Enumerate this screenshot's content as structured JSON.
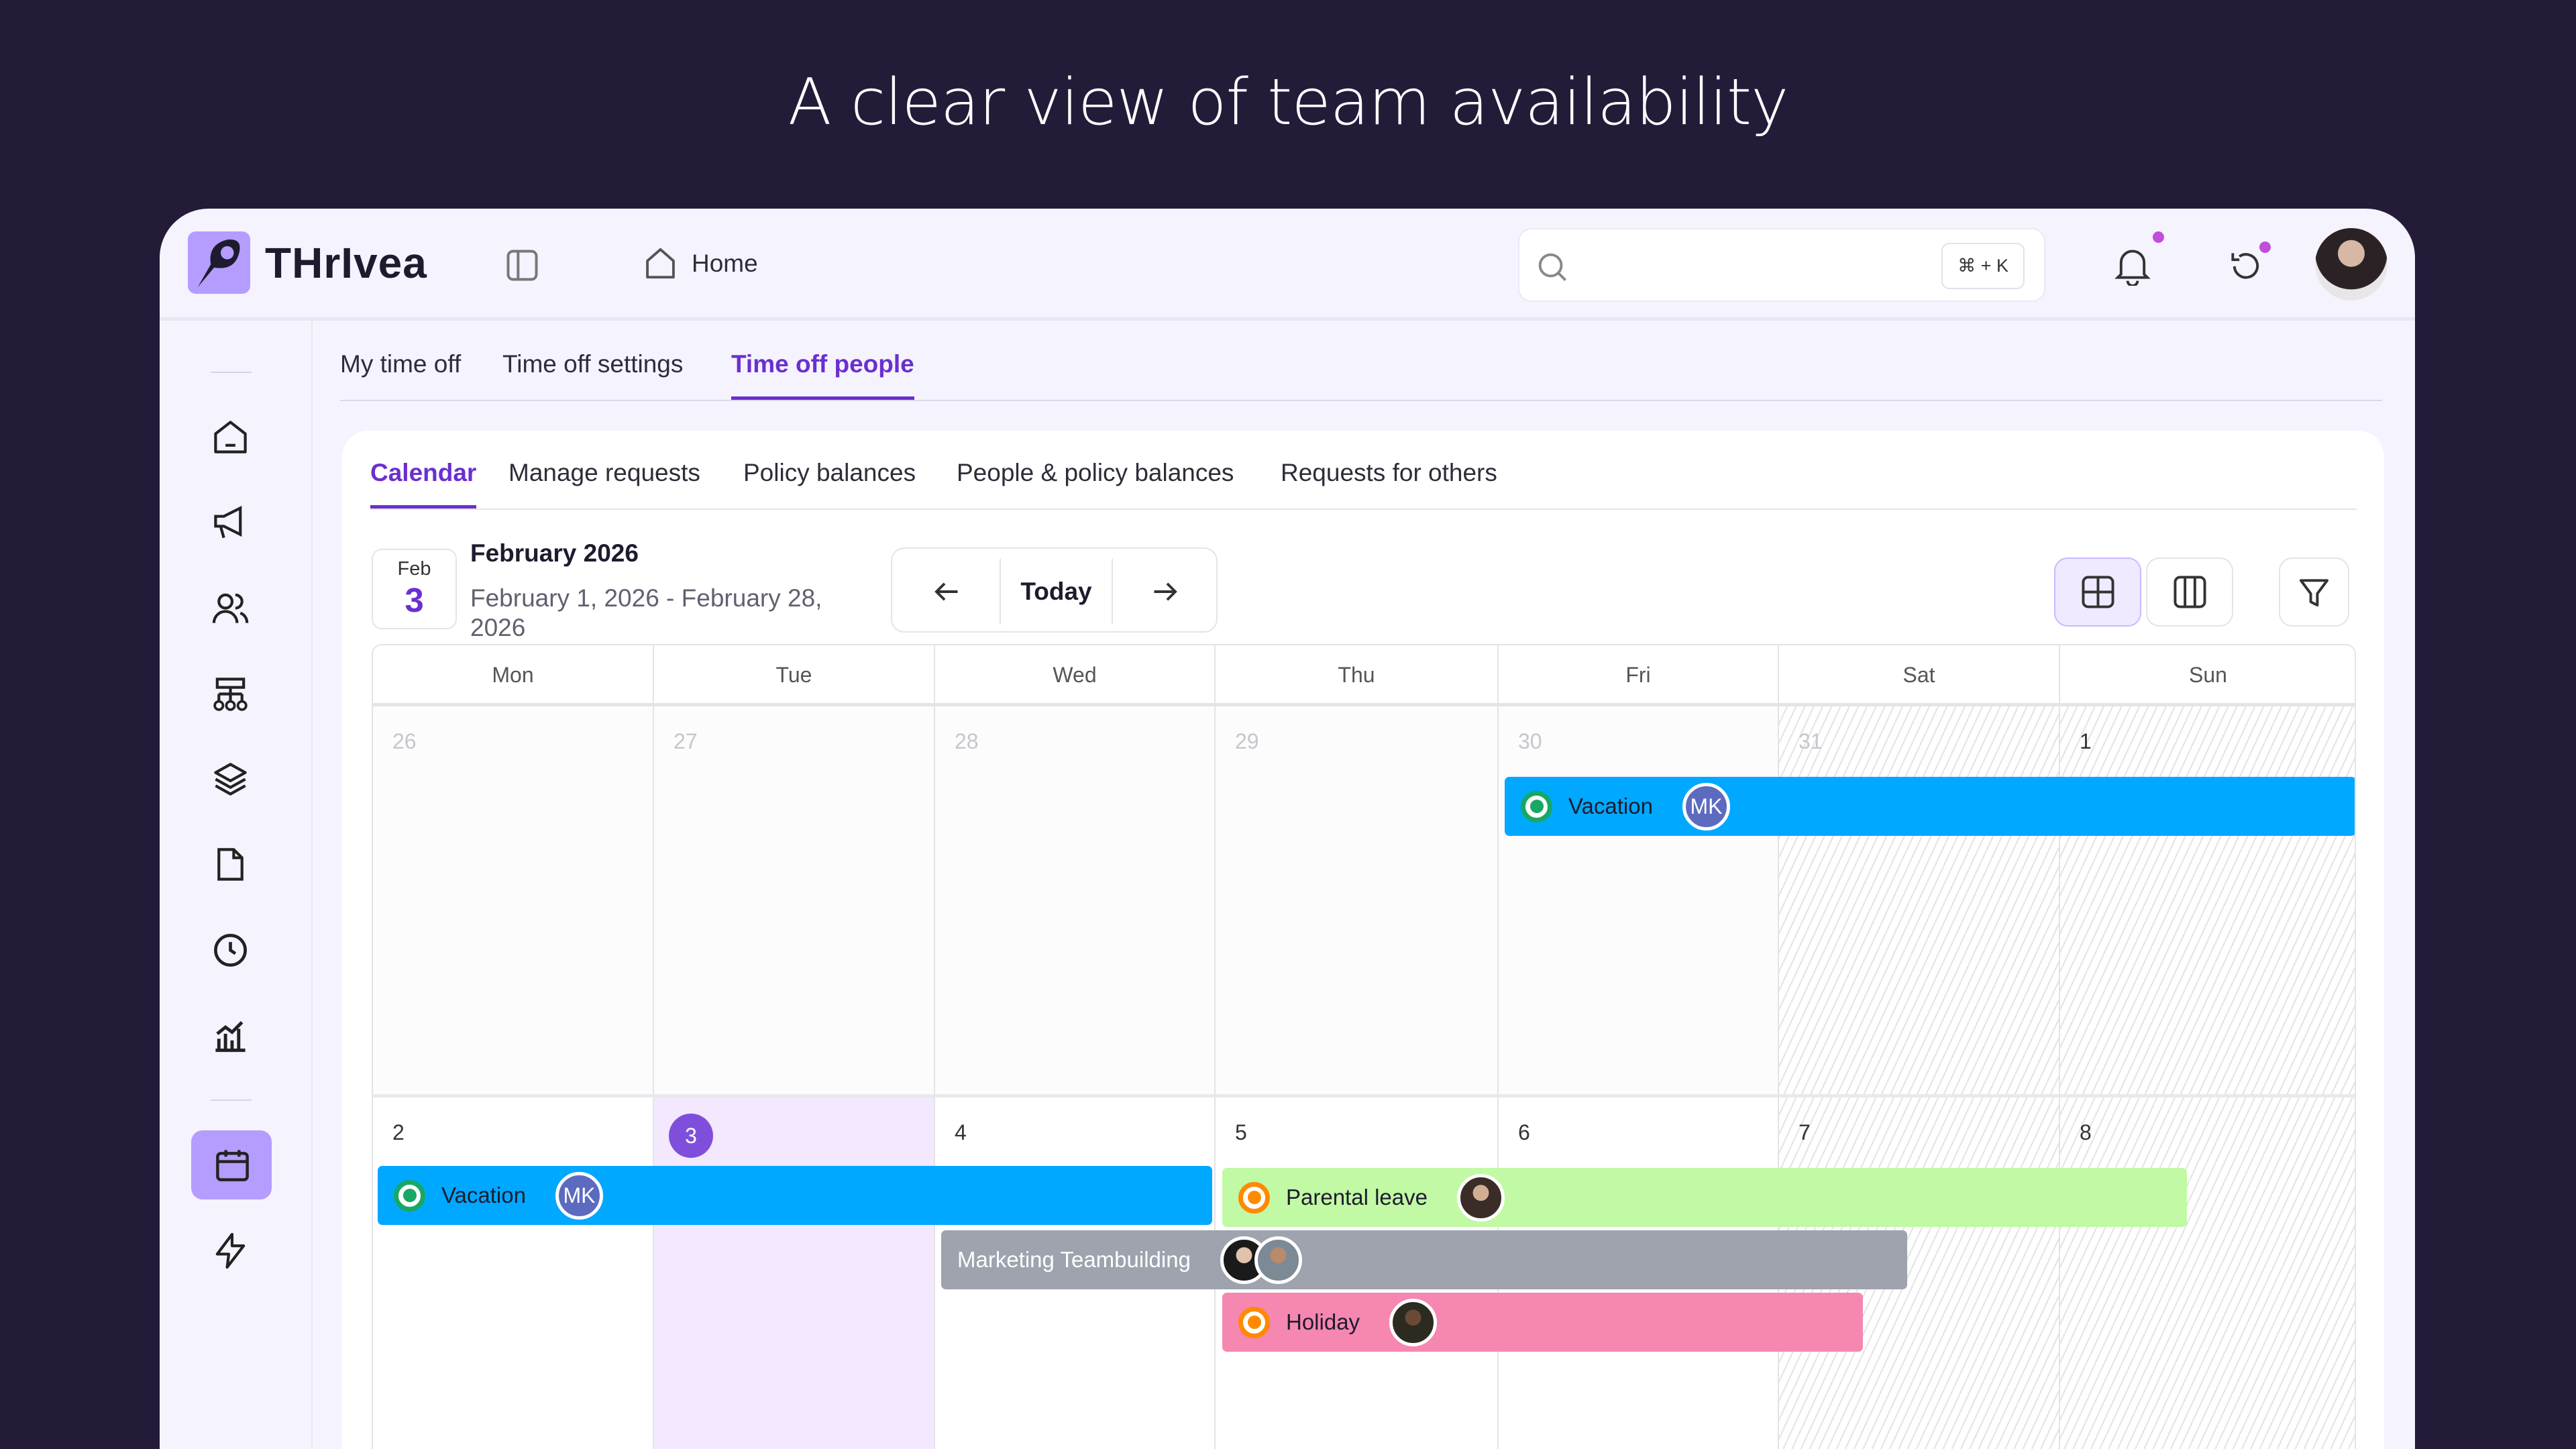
{
  "headline": "A clear view of team availability",
  "brand": "THrIvea",
  "header": {
    "home": "Home",
    "search_placeholder": "",
    "shortcut": "⌘ + K"
  },
  "colors": {
    "accent": "#6a2fd0",
    "vacation": "#00a8ff",
    "parental": "#c1f9a4",
    "teambuilding": "#9ea3ae",
    "holiday": "#f587b1",
    "today": "#f3e8fd"
  },
  "tabs": [
    "My time off",
    "Time off settings",
    "Time off people"
  ],
  "subtabs": [
    "Calendar",
    "Manage requests",
    "Policy balances",
    "People & policy balances",
    "Requests for others"
  ],
  "calendar": {
    "badge_month": "Feb",
    "badge_day": "3",
    "title": "February 2026",
    "range": "February 1, 2026 - February 28, 2026",
    "today": "Today",
    "weekdays": [
      "Mon",
      "Tue",
      "Wed",
      "Thu",
      "Fri",
      "Sat",
      "Sun"
    ],
    "week1": [
      "26",
      "27",
      "28",
      "29",
      "30",
      "31",
      "1"
    ],
    "week2": [
      "2",
      "3",
      "4",
      "5",
      "6",
      "7",
      "8"
    ],
    "events": [
      {
        "label": "Vacation",
        "avatar": "MK"
      },
      {
        "label": "Vacation",
        "avatar": "MK"
      },
      {
        "label": "Parental leave"
      },
      {
        "label": "Marketing Teambuilding"
      },
      {
        "label": "Holiday"
      }
    ]
  }
}
